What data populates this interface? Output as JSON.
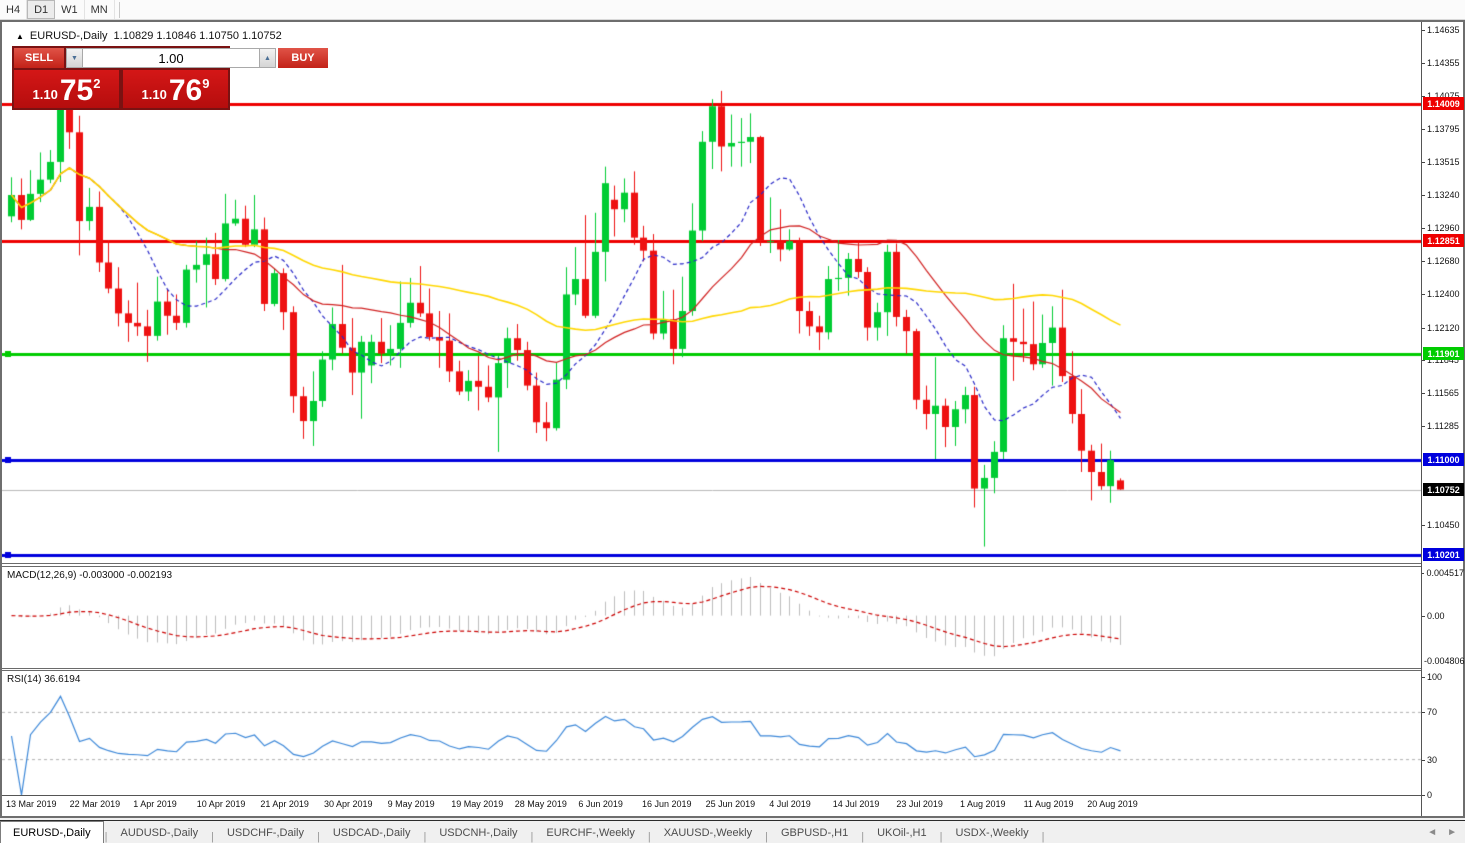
{
  "toolbar": {
    "timeframes": [
      {
        "label": "H4",
        "active": false
      },
      {
        "label": "D1",
        "active": true
      },
      {
        "label": "W1",
        "active": false
      },
      {
        "label": "MN",
        "active": false
      }
    ]
  },
  "chart": {
    "title": {
      "arrow": "▲",
      "symbol": "EURUSD-,Daily",
      "ohlc": "1.10829 1.10846 1.10750 1.10752"
    },
    "trade_panel": {
      "sell_label": "SELL",
      "buy_label": "BUY",
      "volume": "1.00",
      "spinner_down": "▼",
      "spinner_up": "▲",
      "sell_price": {
        "small": "1.10",
        "big": "75",
        "sup": "2"
      },
      "buy_price": {
        "small": "1.10",
        "big": "76",
        "sup": "9"
      }
    }
  },
  "chart_data": {
    "type": "candlestick",
    "symbol": "EURUSD",
    "timeframe": "Daily",
    "ylim": [
      1.10131,
      1.14702
    ],
    "price_axis_ticks": [
      1.14635,
      1.14355,
      1.14075,
      1.13795,
      1.13515,
      1.1324,
      1.1296,
      1.1268,
      1.124,
      1.1212,
      1.11845,
      1.11565,
      1.11285,
      1.1045
    ],
    "levels": [
      {
        "price": 1.14009,
        "label": "1.14009",
        "color": "#ee0000",
        "anchor": false
      },
      {
        "price": 1.12851,
        "label": "1.12851",
        "color": "#ee0000",
        "anchor": false
      },
      {
        "price": 1.11901,
        "label": "1.11901",
        "color": "#00cc00",
        "anchor": true
      },
      {
        "price": 1.11,
        "label": "1.11000",
        "color": "#0000dd",
        "anchor": true
      },
      {
        "price": 1.10201,
        "label": "1.10201",
        "color": "#0000dd",
        "anchor": true
      }
    ],
    "current_price": {
      "value": 1.10752,
      "label": "1.10752",
      "badge_color": "#000000",
      "line_color": "#b9b9b9"
    },
    "candle_up_color": "#00cc33",
    "candle_down_color": "#ee1111",
    "ma_lines": [
      {
        "period": 10,
        "color": "#2929c8",
        "style": "dashed"
      },
      {
        "period": 22,
        "color": "#d02020",
        "style": "solid"
      },
      {
        "period": 50,
        "color": "#ffd700",
        "style": "solid"
      }
    ],
    "dates": [
      "13 Mar 2019",
      "22 Mar 2019",
      "1 Apr 2019",
      "10 Apr 2019",
      "21 Apr 2019",
      "30 Apr 2019",
      "9 May 2019",
      "19 May 2019",
      "28 May 2019",
      "6 Jun 2019",
      "16 Jun 2019",
      "25 Jun 2019",
      "4 Jul 2019",
      "14 Jul 2019",
      "23 Jul 2019",
      "1 Aug 2019",
      "11 Aug 2019",
      "20 Aug 2019"
    ],
    "candles": [
      [
        1.1306,
        1.1339,
        1.1301,
        1.1324
      ],
      [
        1.1324,
        1.1338,
        1.1295,
        1.1303
      ],
      [
        1.1303,
        1.1345,
        1.1302,
        1.1325
      ],
      [
        1.1325,
        1.136,
        1.1318,
        1.1337
      ],
      [
        1.1337,
        1.1362,
        1.1334,
        1.1352
      ],
      [
        1.1352,
        1.1448,
        1.1335,
        1.141
      ],
      [
        1.141,
        1.1438,
        1.1363,
        1.1377
      ],
      [
        1.1377,
        1.1391,
        1.1273,
        1.1302
      ],
      [
        1.1302,
        1.133,
        1.1294,
        1.1314
      ],
      [
        1.1314,
        1.1327,
        1.1259,
        1.1267
      ],
      [
        1.1267,
        1.1286,
        1.1241,
        1.1245
      ],
      [
        1.1245,
        1.1263,
        1.1213,
        1.1224
      ],
      [
        1.1224,
        1.1235,
        1.12,
        1.1216
      ],
      [
        1.1216,
        1.125,
        1.1205,
        1.1213
      ],
      [
        1.1213,
        1.1227,
        1.1183,
        1.1205
      ],
      [
        1.1205,
        1.1255,
        1.1201,
        1.1234
      ],
      [
        1.1234,
        1.1244,
        1.1206,
        1.1222
      ],
      [
        1.1222,
        1.124,
        1.121,
        1.1216
      ],
      [
        1.1216,
        1.1265,
        1.1212,
        1.1261
      ],
      [
        1.1261,
        1.1285,
        1.125,
        1.1265
      ],
      [
        1.1265,
        1.1288,
        1.1229,
        1.1274
      ],
      [
        1.1274,
        1.1292,
        1.1248,
        1.1253
      ],
      [
        1.1253,
        1.1325,
        1.1251,
        1.13
      ],
      [
        1.13,
        1.132,
        1.1298,
        1.1304
      ],
      [
        1.1304,
        1.1315,
        1.128,
        1.1282
      ],
      [
        1.1282,
        1.1324,
        1.128,
        1.1295
      ],
      [
        1.1295,
        1.1305,
        1.1226,
        1.1232
      ],
      [
        1.1232,
        1.1262,
        1.123,
        1.1258
      ],
      [
        1.1258,
        1.1262,
        1.121,
        1.1225
      ],
      [
        1.1225,
        1.123,
        1.114,
        1.1154
      ],
      [
        1.1154,
        1.1162,
        1.1118,
        1.1133
      ],
      [
        1.1133,
        1.1175,
        1.1112,
        1.115
      ],
      [
        1.115,
        1.1192,
        1.1145,
        1.1185
      ],
      [
        1.1185,
        1.1229,
        1.1176,
        1.1215
      ],
      [
        1.1215,
        1.1265,
        1.119,
        1.1195
      ],
      [
        1.1195,
        1.122,
        1.1155,
        1.1174
      ],
      [
        1.1174,
        1.1205,
        1.1135,
        1.12
      ],
      [
        1.118,
        1.1206,
        1.1165,
        1.12
      ],
      [
        1.12,
        1.122,
        1.1182,
        1.119
      ],
      [
        1.119,
        1.1214,
        1.118,
        1.1194
      ],
      [
        1.1194,
        1.1251,
        1.1178,
        1.1216
      ],
      [
        1.1216,
        1.1254,
        1.1212,
        1.1233
      ],
      [
        1.1233,
        1.1264,
        1.1221,
        1.1224
      ],
      [
        1.1224,
        1.1245,
        1.1201,
        1.1204
      ],
      [
        1.1204,
        1.1226,
        1.1178,
        1.1201
      ],
      [
        1.1201,
        1.1224,
        1.1166,
        1.1175
      ],
      [
        1.1175,
        1.1184,
        1.1155,
        1.1158
      ],
      [
        1.1158,
        1.1176,
        1.115,
        1.1167
      ],
      [
        1.1167,
        1.1188,
        1.1142,
        1.1162
      ],
      [
        1.1162,
        1.118,
        1.1149,
        1.1153
      ],
      [
        1.1153,
        1.1188,
        1.1107,
        1.1182
      ],
      [
        1.1182,
        1.1212,
        1.1161,
        1.1203
      ],
      [
        1.1203,
        1.1215,
        1.1184,
        1.1193
      ],
      [
        1.1193,
        1.12,
        1.1159,
        1.1163
      ],
      [
        1.1163,
        1.1174,
        1.1123,
        1.1132
      ],
      [
        1.1132,
        1.1149,
        1.1116,
        1.1127
      ],
      [
        1.1127,
        1.1182,
        1.1125,
        1.1168
      ],
      [
        1.1168,
        1.1263,
        1.116,
        1.124
      ],
      [
        1.124,
        1.128,
        1.1231,
        1.1253
      ],
      [
        1.1253,
        1.1307,
        1.122,
        1.1222
      ],
      [
        1.1222,
        1.1309,
        1.122,
        1.1276
      ],
      [
        1.1276,
        1.1348,
        1.1251,
        1.1334
      ],
      [
        1.132,
        1.1332,
        1.1289,
        1.1312
      ],
      [
        1.1312,
        1.1338,
        1.1301,
        1.1326
      ],
      [
        1.1326,
        1.1344,
        1.1282,
        1.1288
      ],
      [
        1.1288,
        1.1298,
        1.1268,
        1.1277
      ],
      [
        1.1277,
        1.1291,
        1.1202,
        1.1207
      ],
      [
        1.1207,
        1.1243,
        1.1202,
        1.1219
      ],
      [
        1.1219,
        1.1244,
        1.1181,
        1.1194
      ],
      [
        1.1194,
        1.1255,
        1.1187,
        1.1226
      ],
      [
        1.1226,
        1.1317,
        1.1222,
        1.1294
      ],
      [
        1.1294,
        1.1378,
        1.1285,
        1.1369
      ],
      [
        1.1369,
        1.1405,
        1.1346,
        1.1399
      ],
      [
        1.1399,
        1.1412,
        1.1344,
        1.1365
      ],
      [
        1.1365,
        1.1392,
        1.1348,
        1.1368
      ],
      [
        1.1368,
        1.1389,
        1.1348,
        1.1369
      ],
      [
        1.1369,
        1.1393,
        1.1351,
        1.1373
      ],
      [
        1.1373,
        1.1374,
        1.1281,
        1.1285
      ],
      [
        1.1285,
        1.1322,
        1.1275,
        1.1285
      ],
      [
        1.1285,
        1.1312,
        1.1268,
        1.1278
      ],
      [
        1.1278,
        1.1295,
        1.1277,
        1.1285
      ],
      [
        1.1285,
        1.1288,
        1.1207,
        1.1226
      ],
      [
        1.1226,
        1.1234,
        1.1205,
        1.1213
      ],
      [
        1.1213,
        1.1222,
        1.1193,
        1.1208
      ],
      [
        1.1208,
        1.1264,
        1.1202,
        1.1253
      ],
      [
        1.1253,
        1.1286,
        1.1243,
        1.1254
      ],
      [
        1.1254,
        1.1275,
        1.1239,
        1.127
      ],
      [
        1.127,
        1.1285,
        1.1254,
        1.1259
      ],
      [
        1.1259,
        1.1263,
        1.1201,
        1.1212
      ],
      [
        1.1212,
        1.1233,
        1.1201,
        1.1225
      ],
      [
        1.1225,
        1.1282,
        1.1205,
        1.1276
      ],
      [
        1.1276,
        1.1283,
        1.1213,
        1.1221
      ],
      [
        1.1221,
        1.1227,
        1.119,
        1.1209
      ],
      [
        1.1209,
        1.1211,
        1.1143,
        1.1151
      ],
      [
        1.1151,
        1.1163,
        1.1126,
        1.1139
      ],
      [
        1.1139,
        1.1187,
        1.1101,
        1.1146
      ],
      [
        1.1146,
        1.1152,
        1.1111,
        1.1128
      ],
      [
        1.1128,
        1.115,
        1.1112,
        1.1143
      ],
      [
        1.1143,
        1.1162,
        1.1131,
        1.1155
      ],
      [
        1.1155,
        1.1162,
        1.106,
        1.1076
      ],
      [
        1.1076,
        1.1096,
        1.1027,
        1.1085
      ],
      [
        1.1085,
        1.1116,
        1.1072,
        1.1107
      ],
      [
        1.1107,
        1.1214,
        1.1101,
        1.1203
      ],
      [
        1.1203,
        1.1249,
        1.1167,
        1.12
      ],
      [
        1.12,
        1.1228,
        1.1183,
        1.1198
      ],
      [
        1.1198,
        1.1234,
        1.1176,
        1.1181
      ],
      [
        1.1181,
        1.1223,
        1.1178,
        1.1199
      ],
      [
        1.1199,
        1.123,
        1.1163,
        1.1212
      ],
      [
        1.1212,
        1.1244,
        1.1166,
        1.1171
      ],
      [
        1.1171,
        1.1192,
        1.1131,
        1.1139
      ],
      [
        1.1139,
        1.116,
        1.109,
        1.1108
      ],
      [
        1.1108,
        1.1113,
        1.1066,
        1.109
      ],
      [
        1.109,
        1.1114,
        1.1075,
        1.1078
      ],
      [
        1.1078,
        1.1108,
        1.1064,
        1.11
      ],
      [
        1.10829,
        1.10846,
        1.1075,
        1.10752
      ]
    ],
    "macd": {
      "label": "MACD(12,26,9) -0.003000 -0.002193",
      "params": [
        12,
        26,
        9
      ],
      "current_macd": -0.003,
      "current_signal": -0.002193,
      "axis_labels": [
        "0.004517",
        "0.00",
        "-0.004806"
      ],
      "axis_values": [
        0.004517,
        0,
        -0.004806
      ],
      "hist_color": "#bdbdbd",
      "signal_color": "#cc0000"
    },
    "rsi": {
      "label": "RSI(14) 36.6194",
      "period": 14,
      "current": 36.6194,
      "axis_labels": [
        "100",
        "70",
        "30",
        "0"
      ],
      "axis_values": [
        100,
        70,
        30,
        0
      ],
      "levels": [
        70,
        30
      ],
      "color": "#3b87d8",
      "level_color": "#b0b0b0"
    }
  },
  "tabs": {
    "items": [
      {
        "label": "EURUSD-,Daily",
        "active": true
      },
      {
        "label": "AUDUSD-,Daily",
        "active": false
      },
      {
        "label": "USDCHF-,Daily",
        "active": false
      },
      {
        "label": "USDCAD-,Daily",
        "active": false
      },
      {
        "label": "USDCNH-,Daily",
        "active": false
      },
      {
        "label": "EURCHF-,Weekly",
        "active": false
      },
      {
        "label": "XAUUSD-,Weekly",
        "active": false
      },
      {
        "label": "GBPUSD-,H1",
        "active": false
      },
      {
        "label": "UKOil-,H1",
        "active": false
      },
      {
        "label": "USDX-,Weekly",
        "active": false
      }
    ],
    "scroll_left": "◄",
    "scroll_right": "►"
  }
}
